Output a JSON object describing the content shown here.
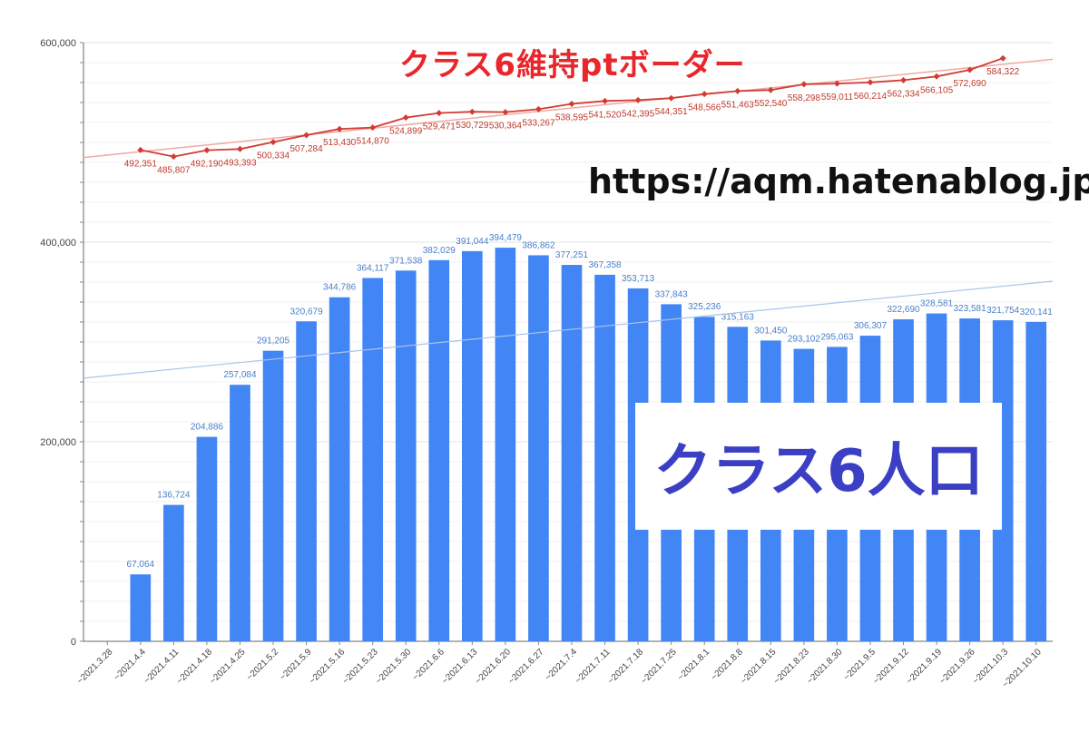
{
  "colors": {
    "bar": "#4285f4",
    "bar_label": "#4a7fc9",
    "line": "#d23b34",
    "line_label": "#c0392b",
    "line_trend": "#f0a8a2",
    "bar_trend": "#a9c4ea",
    "grid": "#e3e3e3",
    "axis_text": "#444444"
  },
  "annotations": {
    "border_title": "クラス6維持ptボーダー",
    "url": "https://aqm.hatenablog.jp",
    "population_title": "クラス6人口"
  },
  "chart_data": {
    "type": "bar",
    "y_ticks": [
      0,
      200000,
      400000,
      600000
    ],
    "y_tick_labels": [
      "0",
      "200,000",
      "400,000",
      "600,000"
    ],
    "ylim": [
      0,
      600000
    ],
    "grid": true,
    "categories": [
      "~2021.3.28",
      "~2021.4.4",
      "~2021.4.11",
      "~2021.4.18",
      "~2021.4.25",
      "~2021.5.2",
      "~2021.5.9",
      "~2021.5.16",
      "~2021.5.23",
      "~2021.5.30",
      "~2021.6.6",
      "~2021.6.13",
      "~2021.6.20",
      "~2021.6.27",
      "~2021.7.4",
      "~2021.7.11",
      "~2021.7.18",
      "~2021.7.25",
      "~2021.8.1",
      "~2021.8.8",
      "~2021.8.15",
      "~2021.8.23",
      "~2021.8.30",
      "~2021.9.5",
      "~2021.9.12",
      "~2021.9.19",
      "~2021.9.26",
      "~2021.10.3",
      "~2021.10.10"
    ],
    "series": [
      {
        "name": "クラス6人口",
        "type": "bar",
        "values": [
          null,
          67064,
          136724,
          204886,
          257084,
          291205,
          320679,
          344786,
          364117,
          371538,
          382029,
          391044,
          394479,
          386862,
          377251,
          367358,
          353713,
          337843,
          325236,
          315163,
          301450,
          293102,
          295063,
          306307,
          322690,
          328581,
          323581,
          321754,
          320141
        ],
        "labels": [
          "",
          "67,064",
          "136,724",
          "204,886",
          "257,084",
          "291,205",
          "320,679",
          "344,786",
          "364,117",
          "371,538",
          "382,029",
          "391,044",
          "394,479",
          "386,862",
          "377,251",
          "367,358",
          "353,713",
          "337,843",
          "325,236",
          "315,163",
          "301,450",
          "293,102",
          "295,063",
          "306,307",
          "322,690",
          "328,581",
          "323,581",
          "321,754",
          "320,141"
        ]
      },
      {
        "name": "クラス6維持ptボーダー",
        "type": "line",
        "values": [
          null,
          492351,
          485807,
          492190,
          493393,
          500334,
          507284,
          513430,
          514870,
          524899,
          529471,
          530729,
          530364,
          533267,
          538595,
          541520,
          542395,
          544351,
          548566,
          551463,
          552540,
          558298,
          559011,
          560214,
          562334,
          566105,
          572690,
          584322,
          null
        ],
        "labels": [
          "",
          "492,351",
          "485,807",
          "492,190",
          "493,393",
          "500,334",
          "507,284",
          "513,430",
          "514,870",
          "524,899",
          "529,471",
          "530,729",
          "530,364",
          "533,267",
          "538,595",
          "541,520",
          "542,395",
          "544,351",
          "548,566",
          "551,463",
          "552,540",
          "558,298",
          "559,011",
          "560,214",
          "562,334",
          "566,105",
          "572,690",
          "584,322",
          ""
        ]
      }
    ]
  }
}
